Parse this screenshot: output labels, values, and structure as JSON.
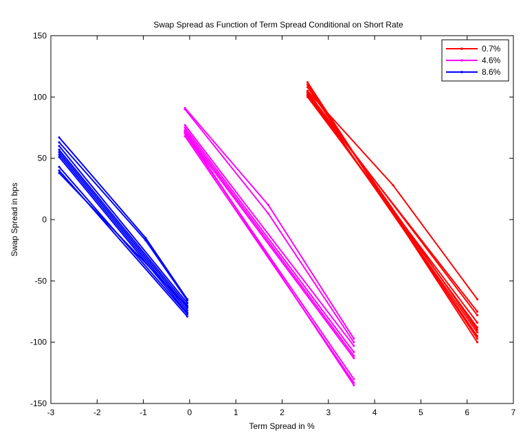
{
  "chart_data": {
    "type": "line",
    "title": "Swap Spread as Function of Term Spread Conditional on Short Rate",
    "xlabel": "Term Spread in %",
    "ylabel": "Swap Spread in bps",
    "xlim": [
      -3,
      7
    ],
    "ylim": [
      -150,
      150
    ],
    "xticks": [
      -3,
      -2,
      -1,
      0,
      1,
      2,
      3,
      4,
      5,
      6,
      7
    ],
    "yticks": [
      -150,
      -100,
      -50,
      0,
      50,
      100,
      150
    ],
    "xtick_labels": [
      "-3",
      "-2",
      "-1",
      "0",
      "1",
      "2",
      "3",
      "4",
      "5",
      "6",
      "7"
    ],
    "ytick_labels": [
      "-150",
      "-100",
      "-50",
      "0",
      "50",
      "100",
      "150"
    ],
    "grid": false,
    "legend_position": "top-right",
    "series": [
      {
        "name": "0.7%",
        "color": "#ff0000",
        "marker": "dot",
        "lines": [
          {
            "x": [
              2.55,
              6.22
            ],
            "y": [
              112,
              -100
            ]
          },
          {
            "x": [
              2.55,
              6.22
            ],
            "y": [
              110,
              -97
            ]
          },
          {
            "x": [
              2.55,
              6.22
            ],
            "y": [
              105,
              -95
            ]
          },
          {
            "x": [
              2.55,
              6.22
            ],
            "y": [
              103,
              -92
            ]
          },
          {
            "x": [
              2.55,
              6.22
            ],
            "y": [
              101,
              -88
            ]
          },
          {
            "x": [
              2.55,
              6.22
            ],
            "y": [
              100,
              -84
            ]
          },
          {
            "x": [
              2.55,
              6.22
            ],
            "y": [
              104,
              -78
            ]
          },
          {
            "x": [
              2.55,
              6.22
            ],
            "y": [
              102,
              -75
            ]
          },
          {
            "x": [
              2.55,
              4.4,
              6.22
            ],
            "y": [
              105,
              28,
              -65
            ]
          },
          {
            "x": [
              2.55,
              6.22
            ],
            "y": [
              108,
              -90
            ]
          }
        ]
      },
      {
        "name": "4.6%",
        "color": "#ff00ff",
        "marker": "dot",
        "lines": [
          {
            "x": [
              -0.1,
              1.7,
              3.55
            ],
            "y": [
              91,
              12,
              -97
            ]
          },
          {
            "x": [
              -0.1,
              1.7,
              3.55
            ],
            "y": [
              90,
              5,
              -100
            ]
          },
          {
            "x": [
              -0.1,
              3.55
            ],
            "y": [
              77,
              -103
            ]
          },
          {
            "x": [
              -0.1,
              3.55
            ],
            "y": [
              75,
              -108
            ]
          },
          {
            "x": [
              -0.1,
              3.55
            ],
            "y": [
              73,
              -111
            ]
          },
          {
            "x": [
              -0.1,
              3.55
            ],
            "y": [
              71,
              -113
            ]
          },
          {
            "x": [
              -0.1,
              3.55
            ],
            "y": [
              70,
              -130
            ]
          },
          {
            "x": [
              -0.1,
              3.55
            ],
            "y": [
              68,
              -133
            ]
          },
          {
            "x": [
              -0.1,
              3.55
            ],
            "y": [
              72,
              -135
            ]
          }
        ]
      },
      {
        "name": "8.6%",
        "color": "#0000ff",
        "marker": "dot",
        "lines": [
          {
            "x": [
              -2.82,
              -0.95,
              -0.05
            ],
            "y": [
              67,
              -15,
              -65
            ]
          },
          {
            "x": [
              -2.82,
              -0.95,
              -0.05
            ],
            "y": [
              63,
              -17,
              -66
            ]
          },
          {
            "x": [
              -2.82,
              -0.05
            ],
            "y": [
              60,
              -68
            ]
          },
          {
            "x": [
              -2.82,
              -0.05
            ],
            "y": [
              57,
              -70
            ]
          },
          {
            "x": [
              -2.82,
              -0.05
            ],
            "y": [
              55,
              -72
            ]
          },
          {
            "x": [
              -2.82,
              -0.05
            ],
            "y": [
              53,
              -74
            ]
          },
          {
            "x": [
              -2.82,
              -0.05
            ],
            "y": [
              51,
              -76
            ]
          },
          {
            "x": [
              -2.82,
              -0.05
            ],
            "y": [
              43,
              -77
            ]
          },
          {
            "x": [
              -2.82,
              -0.05
            ],
            "y": [
              40,
              -79
            ]
          },
          {
            "x": [
              -2.82,
              -0.05
            ],
            "y": [
              38,
              -71
            ]
          }
        ]
      }
    ]
  }
}
